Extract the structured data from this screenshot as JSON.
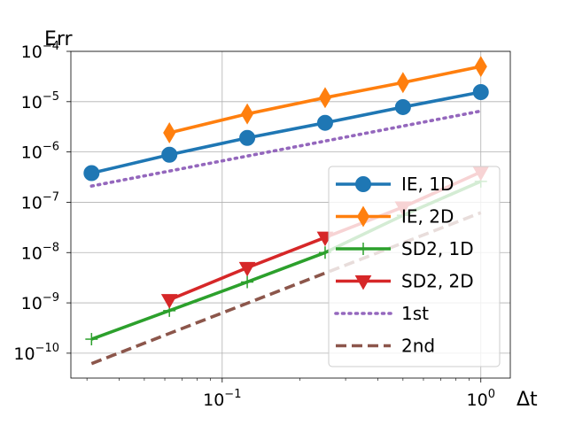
{
  "chart_data": {
    "type": "line",
    "scale": {
      "x": "log",
      "y": "log"
    },
    "xlabel": "Δt",
    "ylabel": "Err",
    "xlim": [
      0.026,
      1.3
    ],
    "ylim": [
      3.2e-11,
      0.0001
    ],
    "grid": true,
    "legend_position": "lower-right",
    "x_ticks": [
      {
        "value": 0.1,
        "base": "10",
        "exp": "−1"
      },
      {
        "value": 1,
        "base": "10",
        "exp": "0"
      }
    ],
    "y_ticks": [
      {
        "value": 1e-10,
        "base": "10",
        "exp": "−10"
      },
      {
        "value": 1e-09,
        "base": "10",
        "exp": "−9"
      },
      {
        "value": 1e-08,
        "base": "10",
        "exp": "−8"
      },
      {
        "value": 1e-07,
        "base": "10",
        "exp": "−7"
      },
      {
        "value": 1e-06,
        "base": "10",
        "exp": "−6"
      },
      {
        "value": 1e-05,
        "base": "10",
        "exp": "−5"
      },
      {
        "value": 0.0001,
        "base": "10",
        "exp": "−4"
      }
    ],
    "series": [
      {
        "name": "IE, 1D",
        "color": "#1f77b4",
        "marker": "circle",
        "dash": "solid",
        "x": [
          0.03125,
          0.0625,
          0.125,
          0.25,
          0.5,
          1.0
        ],
        "y": [
          3.8e-07,
          8.8e-07,
          1.9e-06,
          3.8e-06,
          7.8e-06,
          1.55e-05
        ]
      },
      {
        "name": "IE, 2D",
        "color": "#ff7f0e",
        "marker": "thin-diamond",
        "dash": "solid",
        "x": [
          0.0625,
          0.125,
          0.25,
          0.5,
          1.0
        ],
        "y": [
          2.4e-06,
          5.7e-06,
          1.2e-05,
          2.4e-05,
          5e-05
        ]
      },
      {
        "name": "SD2, 1D",
        "color": "#2ca02c",
        "marker": "plus",
        "dash": "solid",
        "x": [
          0.03125,
          0.0625,
          0.125,
          0.25,
          0.5,
          1.0
        ],
        "y": [
          1.9e-10,
          7e-10,
          2.6e-09,
          1e-08,
          5.5e-08,
          2.6e-07
        ]
      },
      {
        "name": "SD2, 2D",
        "color": "#d62728",
        "marker": "triangle-down",
        "dash": "solid",
        "x": [
          0.0625,
          0.125,
          0.25,
          0.5,
          1.0
        ],
        "y": [
          1.15e-09,
          5e-09,
          2e-08,
          8e-08,
          4e-07
        ]
      },
      {
        "name": "1st",
        "color": "#9467bd",
        "marker": "none",
        "dash": "dotted",
        "x": [
          0.03125,
          1.0
        ],
        "y": [
          2.1e-07,
          6.5e-06
        ]
      },
      {
        "name": "2nd",
        "color": "#8c564b",
        "marker": "none",
        "dash": "dashed",
        "x": [
          0.03125,
          1.0
        ],
        "y": [
          6.2e-11,
          6.2e-08
        ]
      }
    ]
  }
}
